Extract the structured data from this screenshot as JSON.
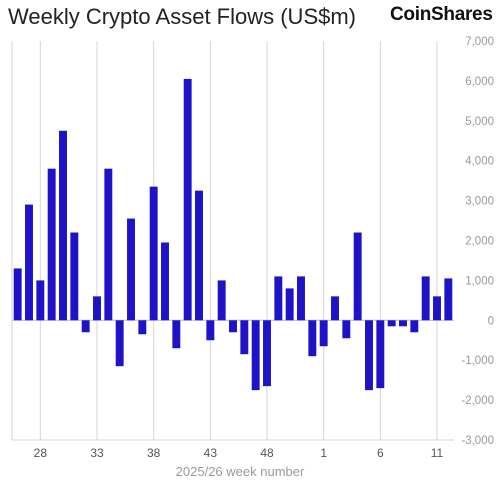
{
  "header": {
    "title": "Weekly Crypto Asset Flows (US$m)",
    "brand": "CoinShares"
  },
  "colors": {
    "bar": "#1f13c8",
    "grid": "#d6d6d6",
    "axis_text": "#9a9a9a"
  },
  "chart_data": {
    "type": "bar",
    "title": "Weekly Crypto Asset Flows (US$m)",
    "xlabel": "2025/26 week number",
    "ylabel": "",
    "ylim": [
      -3000,
      7000
    ],
    "y_ticks": [
      7000,
      6000,
      5000,
      4000,
      3000,
      2000,
      1000,
      0,
      -1000,
      -2000,
      -3000
    ],
    "y_tick_labels": [
      "7,000",
      "6,000",
      "5,000",
      "4,000",
      "3,000",
      "2,000",
      "1,000",
      "0",
      "-1,000",
      "-2,000",
      "-3,000"
    ],
    "y_axis_position": "right",
    "x_tick_labels": [
      "28",
      "33",
      "38",
      "43",
      "48",
      "1",
      "6",
      "11"
    ],
    "x_tick_indices": [
      2,
      7,
      12,
      17,
      22,
      27,
      32,
      37
    ],
    "grid": "vertical lines at labeled weeks",
    "values": [
      1300,
      2900,
      1000,
      3800,
      4750,
      2200,
      -300,
      600,
      3800,
      -1150,
      2550,
      -350,
      3350,
      1950,
      -700,
      6050,
      3250,
      -500,
      1000,
      -300,
      -850,
      -1750,
      -1650,
      1100,
      800,
      1100,
      -900,
      -650,
      600,
      -450,
      2200,
      -1750,
      -1700,
      -150,
      -150,
      -300,
      1100,
      600,
      1050
    ]
  }
}
